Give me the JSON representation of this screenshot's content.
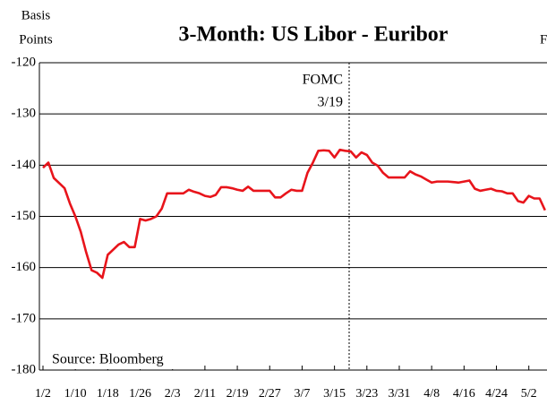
{
  "chart_data": {
    "type": "line",
    "title": "3-Month:  US Libor - Euribor",
    "y_label_lines": [
      "Basis",
      "Points"
    ],
    "right_label": "F",
    "annotations": [
      "FOMC",
      "3/19",
      "Source: Bloomberg"
    ],
    "categories": [
      "1/2",
      null,
      null,
      null,
      null,
      null,
      "1/10",
      null,
      null,
      null,
      null,
      null,
      "1/18",
      null,
      null,
      null,
      null,
      null,
      "1/26",
      null,
      null,
      null,
      null,
      null,
      "2/3",
      null,
      null,
      null,
      null,
      null,
      "2/11",
      null,
      null,
      null,
      null,
      null,
      "2/19",
      null,
      null,
      null,
      null,
      null,
      "2/27",
      null,
      null,
      null,
      null,
      null,
      "3/7",
      null,
      null,
      null,
      null,
      null,
      "3/15",
      null,
      null,
      null,
      null,
      null,
      "3/23",
      null,
      null,
      null,
      null,
      null,
      "3/31",
      null,
      null,
      null,
      null,
      null,
      "4/8",
      null,
      null,
      null,
      null,
      null,
      "4/16",
      null,
      null,
      null,
      null,
      null,
      "4/24",
      null,
      null,
      null,
      null,
      null,
      "5/2",
      null,
      null,
      null
    ],
    "series": [
      {
        "name": "3-Month US Libor - Euribor",
        "color": "#e8141b",
        "values": [
          -140.5,
          -139.5,
          -142.5,
          -143.5,
          -144.5,
          -147.5,
          -150,
          -153,
          -157,
          -160.5,
          -161,
          -162,
          -157.5,
          -156.5,
          -155.5,
          -155,
          -156,
          -156,
          -150.5,
          -150.8,
          -150.5,
          -150,
          -148.5,
          -145.5,
          -145.5,
          -145.5,
          -145.5,
          -144.8,
          -145.2,
          -145.5,
          -146,
          -146.2,
          -145.8,
          -144.3,
          -144.3,
          -144.5,
          -144.8,
          -145,
          -144.2,
          -145,
          -145,
          -145,
          -145,
          -146.3,
          -146.3,
          -145.5,
          -144.8,
          -145,
          -145,
          -141.5,
          -139.5,
          -137.2,
          -137.1,
          -137.2,
          -138.5,
          -137,
          -137.2,
          -137.3,
          -138.5,
          -137.5,
          -138,
          -139.5,
          -140.1,
          -141.5,
          -142.4,
          -142.4,
          -142.4,
          -142.4,
          -141.2,
          -141.8,
          -142.2,
          -142.8,
          -143.4,
          -143.2,
          -143.2,
          -143.2,
          -143.3,
          -143.4,
          -143.2,
          -143,
          -144.6,
          -145,
          -144.8,
          -144.6,
          -145,
          -145.1,
          -145.5,
          -145.5,
          -147,
          -147.3,
          -146,
          -146.5,
          -146.5,
          -148.8
        ]
      }
    ],
    "ylim": [
      -180,
      -120
    ],
    "yticks": [
      -180,
      -170,
      -160,
      -150,
      -140,
      -130,
      -120
    ],
    "grid": true
  }
}
